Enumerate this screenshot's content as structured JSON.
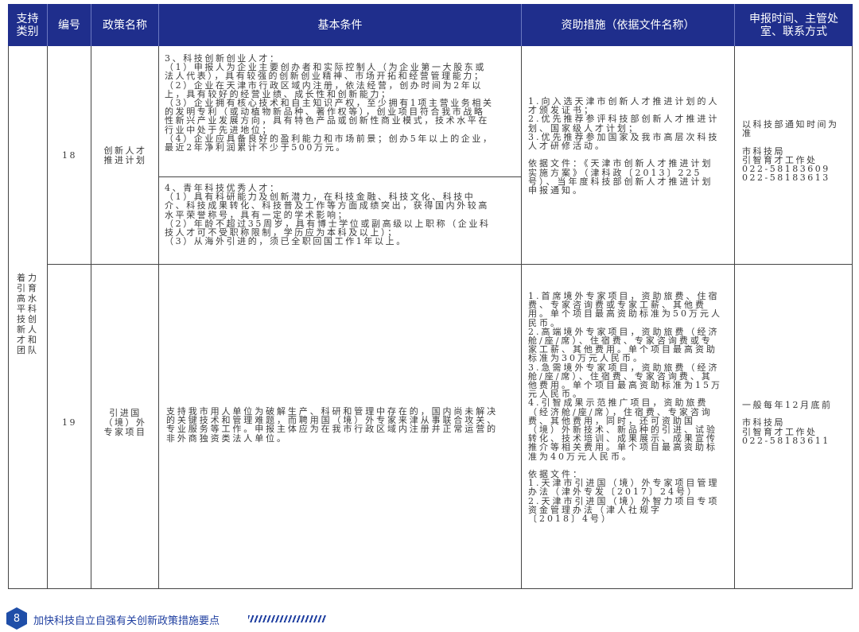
{
  "header": {
    "category": "支持\n类别",
    "number": "编号",
    "policy_name": "政策名称",
    "conditions": "基本条件",
    "support": "资助措施（依据文件名称）",
    "contact": "申报时间、主管处\n室、联系方式"
  },
  "colors": {
    "header_bg": "#1f2e8c",
    "footer_accent": "#1f3fa0"
  },
  "category": "着力\n引育\n高水\n平科\n技创\n新人\n才和\n团队",
  "rows": [
    {
      "number": "18",
      "name": "创新人才\n推进计划",
      "conditions": [
        "3、科技创新创业人才：\n（1）申报人为企业主要创办者和实际控制人（为企业第一大股东或\n法人代表），具有较强的创新创业精神、市场开拓和经营管理能力；\n（2）企业在天津市行政区域内注册，依法经营，创办时间为2年以\n上，具有较好的经营业绩、成长性和创新能力；\n（3）企业拥有核心技术和自主知识产权，至少拥有1项主营业务相关\n的发明专利（或动植物新品种、著作权等），创业项目符合我市战略\n性新兴产业发展方向，具有特色产品或创新性商业模式，技术水平在\n行业中处于先进地位；\n（4）企业应具备良好的盈利能力和市场前景；创办5年以上的企业，\n最近2年净利润累计不少于500万元。",
        "4、青年科技优秀人才：\n（1）具有科研能力及创新潜力，在科技金融、科技文化、科技中\n介、科技成果转化、科技普及工作等方面成绩突出，获得国内外较高\n水平荣誉称号，具有一定的学术影响；\n（2）年龄不超过35周岁，具有博士学位或副高级以上职称（企业科\n技人才可不受职称限制，学历应为本科及以上）；\n（3）从海外引进的，须已全职回国工作1年以上。"
      ],
      "support": "1.向入选天津市创新人才推进计划的人\n才颁发证书；\n2.优先推荐参评科技部创新人才推进计\n划、国家级人才计划；\n3.优先推荐参加国家及我市高层次科技\n人才研修活动。\n\n依据文件：《天津市创新人才推进计划\n实施方案》（津科政〔2013〕225\n号）、当年度科技部创新人才推进计划\n申报通知。",
      "contact": "以科技部通知时间为\n准\n\n市科技局\n引智育才工作处\n022-58183609\n022-58183613"
    },
    {
      "number": "19",
      "name": "引进国\n（境）外\n专家项目",
      "conditions": [
        "支持我市用人单位为破解生产、科研和管理中存在的，国内尚未解决\n的关键技术和管理难题，而聘用国（境）外专家来津从事联合攻关、\n专业服务等工作。申报主体应为在我市行政区域内注册并正常运营的\n非外商独资类法人单位。"
      ],
      "support": "1.首席境外专家项目，资助旅费、住宿\n费、专家咨询费或专家工薪、其他费\n用。单个项目最高资助标准为50万元人\n民币。\n2.高端境外专家项目，资助旅费（经济\n舱/座/席）、住宿费、专家咨询费或专\n家工薪、其他费用。单个项目最高资助\n标准为30万元人民币。\n3.急需境外专家项目，资助旅费（经济\n舱/座/席）、住宿费、专家咨询费、其\n他费用。单个项目最高资助标准为15万\n元人民币。\n4.引智成果示范推广项目，资助旅费\n（经济舱/座/席），住宿费、专家咨询\n费、其他费用，同时，还可资助国\n（境）外新技术、新品种的引进、试验\n转化、技术培训、成果展示、成果宣传\n推介等相关费用。单个项目最高资助标\n准为40万元人民币。\n\n依据文件：\n1.天津市引进国（境）外专家项目管理\n办法（津外专发〔2017〕24号）\n2.天津市引进国（境）外智力项目专项\n资金管理办法（津人社规字\n〔2018〕4号）",
      "contact": "一般每年12月底前\n\n市科技局\n引智育才工作处\n022-58183611"
    }
  ],
  "footer": {
    "page_number": "8",
    "title": "加快科技自立自强有关创新政策措施要点"
  }
}
